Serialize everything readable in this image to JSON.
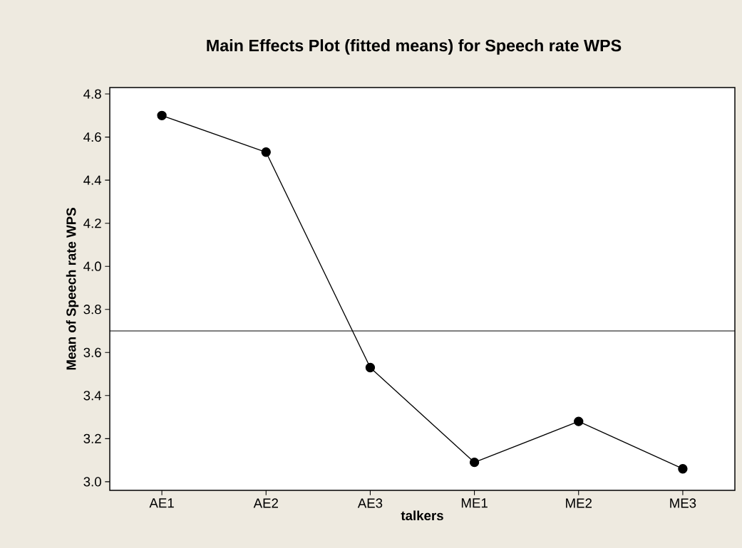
{
  "chart_data": {
    "type": "line",
    "title": "Main Effects Plot (fitted means) for Speech rate WPS",
    "xlabel": "talkers",
    "ylabel": "Mean of Speech rate WPS",
    "categories": [
      "AE1",
      "AE2",
      "AE3",
      "ME1",
      "ME2",
      "ME3"
    ],
    "series": [
      {
        "color": "#000000",
        "values": [
          4.7,
          4.53,
          3.53,
          3.09,
          3.28,
          3.06
        ]
      }
    ],
    "ylim": [
      2.96,
      4.83
    ],
    "yticks": [
      {
        "value": 3,
        "label": "3.0"
      },
      3.2,
      3.4,
      3.6,
      3.8,
      {
        "value": 4,
        "label": "4.0"
      },
      4.2,
      4.4,
      4.6,
      4.8
    ],
    "ref_lines": [
      {
        "axis": "y",
        "value": 3.7,
        "color": "#000000"
      }
    ],
    "marker": "circle",
    "line_style": "solid"
  }
}
